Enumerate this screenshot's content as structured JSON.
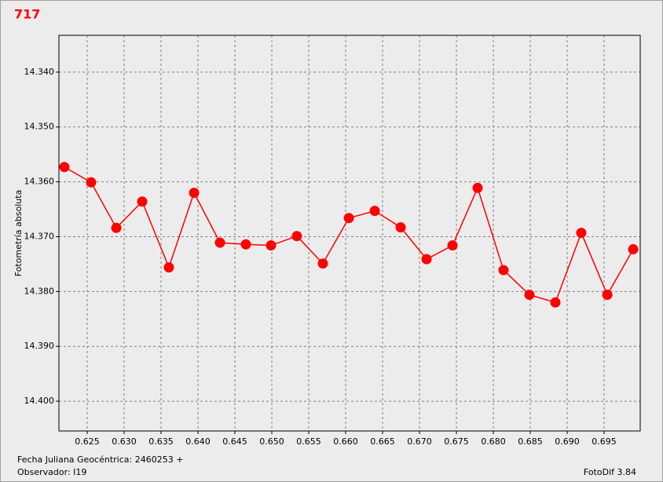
{
  "chart_data": {
    "type": "line",
    "title": "717",
    "ylabel": "Fotometría absoluta",
    "annotations": [
      "Fecha Juliana Geocéntrica: 2460253 +",
      "Observador: I19",
      "FotoDif 3.84"
    ],
    "color": "#ff0000",
    "grid": true,
    "y_inverted": true,
    "x": [
      0.62191,
      0.62553,
      0.62894,
      0.63245,
      0.63606,
      0.63947,
      0.64298,
      0.64649,
      0.64989,
      0.6534,
      0.65691,
      0.66043,
      0.66394,
      0.66745,
      0.67096,
      0.67447,
      0.67787,
      0.68138,
      0.68489,
      0.6884,
      0.69191,
      0.69543,
      0.69894
    ],
    "values": [
      14.3573,
      14.3601,
      14.3684,
      14.3636,
      14.3756,
      14.362,
      14.3711,
      14.3714,
      14.3716,
      14.3699,
      14.3749,
      14.3666,
      14.3653,
      14.3683,
      14.3741,
      14.3716,
      14.3611,
      14.3761,
      14.3806,
      14.382,
      14.3693,
      14.3806,
      14.3723
    ],
    "xlim": [
      0.62117,
      0.69989
    ],
    "xticks": [
      0.625,
      {
        "value": 0.63,
        "label": "0.630"
      },
      0.635,
      {
        "value": 0.64,
        "label": "0.640"
      },
      0.645,
      {
        "value": 0.65,
        "label": "0.650"
      },
      0.655,
      {
        "value": 0.66,
        "label": "0.660"
      },
      0.665,
      {
        "value": 0.67,
        "label": "0.670"
      },
      0.675,
      {
        "value": 0.68,
        "label": "0.680"
      },
      0.685,
      {
        "value": 0.69,
        "label": "0.690"
      },
      0.695
    ],
    "ylim": [
      14.33329,
      14.40543
    ],
    "yticks": [
      {
        "value": 14.34,
        "label": "14.340"
      },
      {
        "value": 14.35,
        "label": "14.350"
      },
      {
        "value": 14.36,
        "label": "14.360"
      },
      {
        "value": 14.37,
        "label": "14.370"
      },
      {
        "value": 14.38,
        "label": "14.380"
      },
      {
        "value": 14.39,
        "label": "14.390"
      },
      {
        "value": 14.4,
        "label": "14.400"
      }
    ]
  }
}
